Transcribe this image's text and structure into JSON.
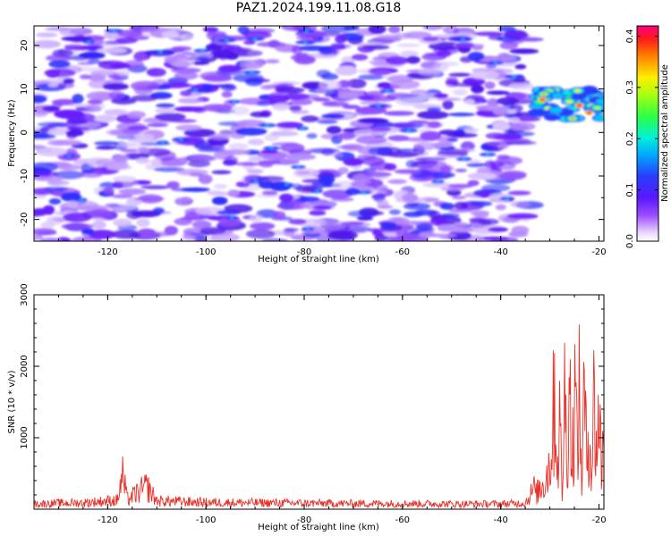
{
  "title": "PAZ1.2024.199.11.08.G18",
  "chart_data": [
    {
      "type": "heatmap",
      "xlabel": "Height of straight line (km)",
      "ylabel": "Frequency (Hz)",
      "xlim": [
        -135,
        -19
      ],
      "ylim": [
        -25,
        24.5
      ],
      "xticks": [
        "-120",
        "-100",
        "-80",
        "-60",
        "-40",
        "-20"
      ],
      "yticks": [
        "20",
        "10",
        "0",
        "-10",
        "-20"
      ],
      "colorbar": {
        "label": "Normalized spectral amplitude",
        "range": [
          0,
          0.42
        ],
        "ticks": [
          "0.0",
          "0.1",
          "0.2",
          "0.3",
          "0.4"
        ],
        "colormap": "rainbow"
      },
      "description_regions": [
        {
          "x": [
            -135,
            -34
          ],
          "y": [
            -25,
            24.5
          ],
          "amplitude": [
            0.01,
            0.07
          ]
        },
        {
          "x": [
            -33,
            -19
          ],
          "y": [
            3,
            10
          ],
          "amplitude": [
            0.1,
            0.42
          ]
        }
      ]
    },
    {
      "type": "line",
      "xlabel": "Height of straight line (km)",
      "ylabel": "SNR (10 * v/v)",
      "xlim": [
        -135,
        -19
      ],
      "ylim": [
        0,
        3000
      ],
      "xticks": [
        "-120",
        "-100",
        "-80",
        "-60",
        "-40",
        "-20"
      ],
      "yticks": [
        "1000",
        "2000",
        "3000"
      ],
      "color": "#e8322a",
      "series": [
        {
          "points": [
            [
              -135,
              70
            ],
            [
              -130,
              80
            ],
            [
              -125,
              85
            ],
            [
              -118,
              120
            ],
            [
              -117,
              450
            ],
            [
              -116,
              130
            ],
            [
              -112,
              300
            ],
            [
              -110,
              110
            ],
            [
              -100,
              90
            ],
            [
              -90,
              85
            ],
            [
              -80,
              80
            ],
            [
              -70,
              75
            ],
            [
              -60,
              75
            ],
            [
              -50,
              70
            ],
            [
              -40,
              70
            ],
            [
              -35,
              80
            ],
            [
              -33,
              300
            ],
            [
              -32,
              450
            ],
            [
              -31,
              600
            ],
            [
              -30,
              1000
            ],
            [
              -29.5,
              1500
            ],
            [
              -29,
              2750
            ],
            [
              -28.5,
              800
            ],
            [
              -28,
              1900
            ],
            [
              -27.5,
              300
            ],
            [
              -27,
              2400
            ],
            [
              -26.5,
              1200
            ],
            [
              -26,
              3000
            ],
            [
              -25.5,
              700
            ],
            [
              -25,
              2600
            ],
            [
              -24.5,
              1500
            ],
            [
              -24,
              2300
            ],
            [
              -23.5,
              600
            ],
            [
              -23,
              2500
            ],
            [
              -22.5,
              1000
            ],
            [
              -22,
              2100
            ],
            [
              -21.5,
              700
            ],
            [
              -21,
              2400
            ],
            [
              -20.5,
              1200
            ],
            [
              -20,
              2200
            ],
            [
              -19.5,
              900
            ],
            [
              -19,
              1600
            ]
          ]
        }
      ]
    }
  ]
}
